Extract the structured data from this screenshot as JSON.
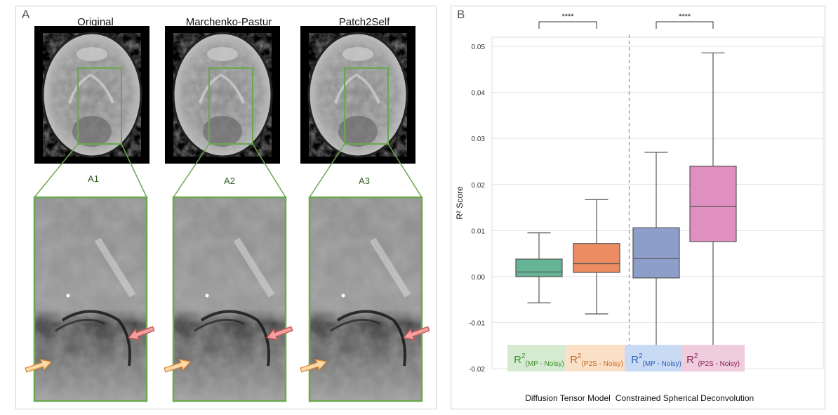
{
  "panel_a": {
    "label": "A",
    "columns": [
      {
        "title": "Original",
        "sub_label": "A1"
      },
      {
        "title": "Marchenko-Pastur",
        "sub_label": "A2"
      },
      {
        "title": "Patch2Self",
        "sub_label": "A3"
      }
    ]
  },
  "panel_b": {
    "label": "B"
  },
  "colors": {
    "dtm_mp": "#66b496",
    "dtm_p2s": "#ec8c62",
    "csd_mp": "#8d9ec8",
    "csd_p2s": "#df8fc0",
    "roi_box": "#6aa84f"
  },
  "chart_data": {
    "type": "box",
    "ylabel": "R² Score",
    "ylim": [
      -0.02,
      0.052
    ],
    "yticks": [
      "-0.02",
      "-0.01",
      "0.00",
      "0.01",
      "0.02",
      "0.03",
      "0.04",
      "0.05"
    ],
    "ytick_values": [
      -0.02,
      -0.01,
      0.0,
      0.01,
      0.02,
      0.03,
      0.04,
      0.05
    ],
    "grid": true,
    "groups": [
      {
        "name": "Diffusion Tensor Model",
        "significance": "****"
      },
      {
        "name": "Constrained Spherical Deconvolution",
        "significance": "****"
      }
    ],
    "series": [
      {
        "label_main": "R",
        "label_sup": "2",
        "label_sub": "(MP - Noisy)",
        "group": 0,
        "color_key": "dtm_mp",
        "label_color": "#3f8f2f",
        "label_bg": "#d5ead0",
        "whisker_low": -0.0057,
        "q1": 0.0,
        "median": 0.001,
        "q3": 0.0038,
        "whisker_high": 0.0095
      },
      {
        "label_main": "R",
        "label_sup": "2",
        "label_sub": "(P2S - Noisy)",
        "group": 0,
        "color_key": "dtm_p2s",
        "label_color": "#c0692a",
        "label_bg": "#fbe0c8",
        "whisker_low": -0.0081,
        "q1": 0.0009,
        "median": 0.0028,
        "q3": 0.0072,
        "whisker_high": 0.0167
      },
      {
        "label_main": "R",
        "label_sup": "2",
        "label_sub": "(MP - Noisy)",
        "group": 1,
        "color_key": "csd_mp",
        "label_color": "#2e5fae",
        "label_bg": "#c9daf5",
        "whisker_low": -0.0166,
        "q1": -0.0003,
        "median": 0.0039,
        "q3": 0.0106,
        "whisker_high": 0.027
      },
      {
        "label_main": "R",
        "label_sup": "2",
        "label_sub": "(P2S - Noisy)",
        "group": 1,
        "color_key": "csd_p2s",
        "label_color": "#8a1f56",
        "label_bg": "#efcddd",
        "whisker_low": -0.0168,
        "q1": 0.0076,
        "median": 0.0152,
        "q3": 0.024,
        "whisker_high": 0.0486
      }
    ]
  }
}
